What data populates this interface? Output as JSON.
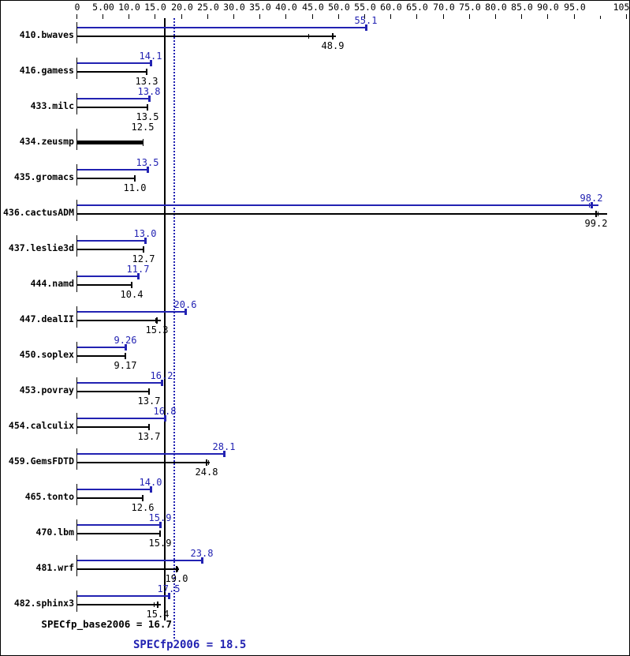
{
  "colors": {
    "peak_blue": "#2222b2",
    "base_black": "#000000",
    "background": "#ffffff",
    "border": "#000000"
  },
  "chart_data": {
    "type": "bar",
    "orientation": "horizontal",
    "grid": false,
    "legend": "none",
    "x_axis": {
      "min": 0,
      "max": 105,
      "position": "top",
      "ticks": [
        {
          "value": 0,
          "label": "0"
        },
        {
          "value": 5,
          "label": "5.00"
        },
        {
          "value": 10,
          "label": "10.0"
        },
        {
          "value": 15,
          "label": "15.0"
        },
        {
          "value": 20,
          "label": "20.0"
        },
        {
          "value": 25,
          "label": "25.0"
        },
        {
          "value": 30,
          "label": "30.0"
        },
        {
          "value": 35,
          "label": "35.0"
        },
        {
          "value": 40,
          "label": "40.0"
        },
        {
          "value": 45,
          "label": "45.0"
        },
        {
          "value": 50,
          "label": "50.0"
        },
        {
          "value": 55,
          "label": "55.0"
        },
        {
          "value": 60,
          "label": "60.0"
        },
        {
          "value": 65,
          "label": "65.0"
        },
        {
          "value": 70,
          "label": "70.0"
        },
        {
          "value": 75,
          "label": "75.0"
        },
        {
          "value": 80,
          "label": "80.0"
        },
        {
          "value": 85,
          "label": "85.0"
        },
        {
          "value": 90,
          "label": "90.0"
        },
        {
          "value": 95,
          "label": "95.0"
        },
        {
          "value": 100,
          "label": ""
        },
        {
          "value": 105,
          "label": "105"
        }
      ]
    },
    "series": [
      {
        "name": "peak (SPECfp2006)",
        "color_key": "peak_blue"
      },
      {
        "name": "base (SPECfp_base2006)",
        "color_key": "base_black"
      }
    ],
    "benchmarks": [
      {
        "name": "410.bwaves",
        "peak": 55.1,
        "peak_label": "55.1",
        "base": 48.9,
        "base_label": "48.9",
        "base_marks": [
          44.1,
          48.8
        ],
        "base_draw": 49.4
      },
      {
        "name": "416.gamess",
        "peak": 14.1,
        "peak_label": "14.1",
        "base": 13.3,
        "base_label": "13.3"
      },
      {
        "name": "433.milc",
        "peak": 13.8,
        "peak_label": "13.8",
        "base": 13.5,
        "base_label": "13.5"
      },
      {
        "name": "434.zeusmp",
        "peak": null,
        "peak_label": "",
        "base": 12.5,
        "base_label": "12.5",
        "base_only": true
      },
      {
        "name": "435.gromacs",
        "peak": 13.5,
        "peak_label": "13.5",
        "base": 11.0,
        "base_label": "11.0"
      },
      {
        "name": "436.cactusADM",
        "peak": 98.2,
        "peak_label": "98.2",
        "peak_marks": [
          97.7,
          98.3
        ],
        "peak_draw": 99.5,
        "base": 99.2,
        "base_label": "99.2",
        "base_marks": [
          99.0,
          99.4
        ],
        "base_draw": 101.2
      },
      {
        "name": "437.leslie3d",
        "peak": 13.0,
        "peak_label": "13.0",
        "base": 12.7,
        "base_label": "12.7"
      },
      {
        "name": "444.namd",
        "peak": 11.7,
        "peak_label": "11.7",
        "base": 10.4,
        "base_label": "10.4"
      },
      {
        "name": "447.dealII",
        "peak": 20.6,
        "peak_label": "20.6",
        "base": 15.3,
        "base_label": "15.3",
        "base_marks": [
          14.9,
          15.3
        ],
        "base_draw": 16.0
      },
      {
        "name": "450.soplex",
        "peak": 9.26,
        "peak_label": "9.26",
        "base": 9.17,
        "base_label": "9.17"
      },
      {
        "name": "453.povray",
        "peak": 16.2,
        "peak_label": "16.2",
        "base": 13.7,
        "base_label": "13.7"
      },
      {
        "name": "454.calculix",
        "peak": 16.8,
        "peak_label": "16.8",
        "base": 13.7,
        "base_label": "13.7"
      },
      {
        "name": "459.GemsFDTD",
        "peak": 28.1,
        "peak_label": "28.1",
        "base": 24.8,
        "base_label": "24.8",
        "base_marks": [
          24.7,
          25.0
        ],
        "base_draw": 25.3
      },
      {
        "name": "465.tonto",
        "peak": 14.0,
        "peak_label": "14.0",
        "base": 12.6,
        "base_label": "12.6"
      },
      {
        "name": "470.lbm",
        "peak": 15.9,
        "peak_label": "15.9",
        "base": 15.9,
        "base_label": "15.9"
      },
      {
        "name": "481.wrf",
        "peak": 23.8,
        "peak_label": "23.8",
        "base": 19.0,
        "base_label": "19.0",
        "base_marks": [
          19.2
        ],
        "base_draw": 19.4
      },
      {
        "name": "482.sphinx3",
        "peak": 17.5,
        "peak_label": "17.5",
        "base": 15.4,
        "base_label": "15.4",
        "base_marks": [
          14.7,
          15.2
        ],
        "base_draw": 16.0
      }
    ],
    "reference_lines": [
      {
        "value": 16.7,
        "style": "solid",
        "color_key": "base_black"
      },
      {
        "value": 18.5,
        "style": "dotted",
        "color_key": "peak_blue"
      }
    ],
    "summary": {
      "base": {
        "label": "SPECfp_base2006 = 16.7",
        "value": 16.7
      },
      "peak": {
        "label": "SPECfp2006 = 18.5",
        "value": 18.5
      }
    }
  }
}
